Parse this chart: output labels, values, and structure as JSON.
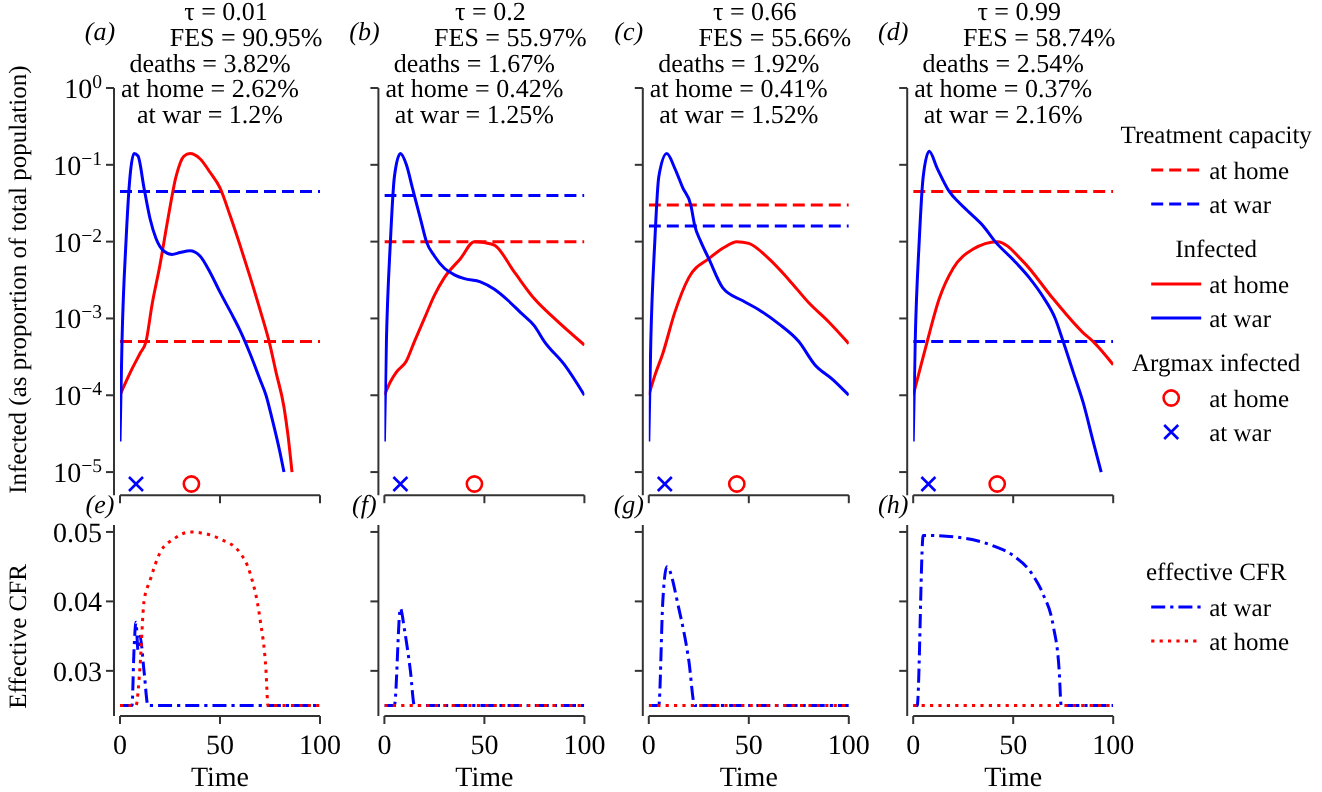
{
  "chart_data": [
    {
      "type": "line",
      "title": "τ = 0.01",
      "subtitle": "FES = 90.95%",
      "ylabel": "Infected (as proportion of total population)",
      "annotations": [
        "(a)",
        "deaths = 3.82%",
        "at home = 2.62%",
        "at war = 1.2%"
      ],
      "log": "y",
      "xlim": [
        0,
        100
      ],
      "xticks": [
        0,
        50,
        100
      ],
      "ylim": [
        5e-06,
        1
      ],
      "yticks": [
        {
          "value": 1,
          "label": "10$^{0}$"
        },
        {
          "value": 0.1,
          "label": "10$^{−1}$"
        },
        {
          "value": 0.01,
          "label": "10$^{−2}$"
        },
        {
          "value": 0.001,
          "label": "10$^{−3}$"
        },
        {
          "value": 0.0001,
          "label": "10$^{−4}$"
        },
        {
          "value": 1e-05,
          "label": "10$^{−5}$"
        }
      ],
      "tick_labels": "y",
      "legend": false,
      "series": [
        {
          "color": "#ff0000",
          "line_style": "dashed",
          "x": [
            0,
            100
          ],
          "values": [
            0.0005,
            0.0005
          ]
        },
        {
          "color": "#0000ff",
          "line_style": "dashed",
          "x": [
            0,
            100
          ],
          "values": [
            0.045,
            0.045
          ]
        },
        {
          "color": "#ff0000",
          "x": [
            0,
            3,
            6,
            10,
            13,
            16,
            20,
            24,
            28,
            32,
            35,
            40,
            45,
            50,
            55,
            60,
            65,
            70,
            75,
            78,
            82,
            84,
            86
          ],
          "values": [
            0.0001,
            0.00015,
            0.00022,
            0.00035,
            0.0005,
            0.0015,
            0.005,
            0.02,
            0.07,
            0.13,
            0.14,
            0.12,
            0.08,
            0.05,
            0.022,
            0.009,
            0.0035,
            0.0013,
            0.00045,
            0.0002,
            7e-05,
            3e-05,
            1e-05
          ]
        },
        {
          "color": "#0000ff",
          "x": [
            0,
            1,
            3,
            5,
            7,
            9,
            12,
            15,
            18,
            22,
            26,
            30,
            35,
            40,
            45,
            50,
            57,
            60,
            65,
            70,
            73,
            76,
            80,
            82
          ],
          "values": [
            2.5e-05,
            0.0005,
            0.01,
            0.07,
            0.14,
            0.13,
            0.05,
            0.02,
            0.011,
            0.0075,
            0.0068,
            0.0072,
            0.0076,
            0.0065,
            0.004,
            0.0022,
            0.001,
            0.0007,
            0.00035,
            0.00016,
            0.0001,
            5e-05,
            1.8e-05,
            1e-05
          ]
        },
        {
          "type": "scatter",
          "marker": "circle",
          "color": "#ff0000",
          "x": [
            35.7
          ],
          "values": [
            7e-06
          ]
        },
        {
          "type": "scatter",
          "marker": "cross",
          "color": "#0000ff",
          "x": [
            8
          ],
          "values": [
            7e-06
          ]
        }
      ]
    },
    {
      "type": "line",
      "title": "τ = 0.2",
      "subtitle": "FES = 55.97%",
      "annotations": [
        "(b)",
        "deaths = 1.67%",
        "at home = 0.42%",
        "at war = 1.25%"
      ],
      "log": "y",
      "xlim": [
        0,
        100
      ],
      "xticks": [
        0,
        50,
        100
      ],
      "ylim": [
        5e-06,
        1
      ],
      "yticks": [
        {
          "value": 1,
          "label": null
        },
        {
          "value": 0.1,
          "label": null
        },
        {
          "value": 0.01,
          "label": null
        },
        {
          "value": 0.001,
          "label": null
        },
        {
          "value": 0.0001,
          "label": null
        },
        {
          "value": 1e-05,
          "label": null
        }
      ],
      "tick_labels": false,
      "legend": false,
      "series": [
        {
          "color": "#ff0000",
          "line_style": "dashed",
          "x": [
            0,
            100
          ],
          "values": [
            0.01,
            0.01
          ]
        },
        {
          "color": "#0000ff",
          "line_style": "dashed",
          "x": [
            0,
            100
          ],
          "values": [
            0.04,
            0.04
          ]
        },
        {
          "color": "#ff0000",
          "x": [
            0,
            3,
            6,
            11,
            15,
            20,
            25,
            30,
            38,
            45,
            50,
            55,
            65,
            75,
            85,
            100
          ],
          "values": [
            0.0001,
            0.00015,
            0.0002,
            0.00028,
            0.0005,
            0.001,
            0.002,
            0.0034,
            0.006,
            0.01,
            0.0097,
            0.009,
            0.004,
            0.0018,
            0.001,
            0.00045
          ]
        },
        {
          "color": "#0000ff",
          "x": [
            0,
            1,
            3,
            5,
            8,
            11,
            14,
            18,
            21,
            25,
            30,
            35,
            40,
            48,
            55,
            62,
            68,
            75,
            80,
            90,
            100
          ],
          "values": [
            2.5e-05,
            0.0005,
            0.01,
            0.07,
            0.14,
            0.1,
            0.05,
            0.02,
            0.01,
            0.0065,
            0.0045,
            0.0037,
            0.0033,
            0.003,
            0.0024,
            0.0017,
            0.0012,
            0.0008,
            0.0005,
            0.00025,
            0.0001
          ]
        },
        {
          "type": "scatter",
          "marker": "circle",
          "color": "#ff0000",
          "x": [
            45
          ],
          "values": [
            7e-06
          ]
        },
        {
          "type": "scatter",
          "marker": "cross",
          "color": "#0000ff",
          "x": [
            8
          ],
          "values": [
            7e-06
          ]
        }
      ]
    },
    {
      "type": "line",
      "title": "τ = 0.66",
      "subtitle": "FES = 55.66%",
      "annotations": [
        "(c)",
        "deaths = 1.92%",
        "at home = 0.41%",
        "at war = 1.52%"
      ],
      "log": "y",
      "xlim": [
        0,
        100
      ],
      "xticks": [
        0,
        50,
        100
      ],
      "ylim": [
        5e-06,
        1
      ],
      "yticks": [
        {
          "value": 1,
          "label": null
        },
        {
          "value": 0.1,
          "label": null
        },
        {
          "value": 0.01,
          "label": null
        },
        {
          "value": 0.001,
          "label": null
        },
        {
          "value": 0.0001,
          "label": null
        },
        {
          "value": 1e-05,
          "label": null
        }
      ],
      "tick_labels": false,
      "legend": false,
      "series": [
        {
          "color": "#ff0000",
          "line_style": "dashed",
          "x": [
            0,
            100
          ],
          "values": [
            0.03,
            0.03
          ]
        },
        {
          "color": "#0000ff",
          "line_style": "dashed",
          "x": [
            0,
            100
          ],
          "values": [
            0.016,
            0.016
          ]
        },
        {
          "color": "#ff0000",
          "x": [
            0,
            3,
            7,
            13,
            20,
            30,
            38,
            44,
            50,
            60,
            70,
            80,
            90,
            100
          ],
          "values": [
            0.0001,
            0.00018,
            0.00035,
            0.0012,
            0.0034,
            0.006,
            0.0085,
            0.01,
            0.0095,
            0.006,
            0.0032,
            0.0016,
            0.0009,
            0.00047
          ]
        },
        {
          "color": "#0000ff",
          "x": [
            0,
            1,
            3,
            5,
            9,
            13,
            17,
            21,
            23,
            26,
            30,
            37,
            47,
            55,
            65,
            75,
            83,
            92,
            100
          ],
          "values": [
            2.5e-05,
            0.0005,
            0.01,
            0.07,
            0.14,
            0.09,
            0.05,
            0.03,
            0.016,
            0.01,
            0.006,
            0.0025,
            0.0017,
            0.0013,
            0.00085,
            0.0005,
            0.00025,
            0.00016,
            0.0001
          ]
        },
        {
          "type": "scatter",
          "marker": "circle",
          "color": "#ff0000",
          "x": [
            44
          ],
          "values": [
            7e-06
          ]
        },
        {
          "type": "scatter",
          "marker": "cross",
          "color": "#0000ff",
          "x": [
            8
          ],
          "values": [
            7e-06
          ]
        }
      ]
    },
    {
      "type": "line",
      "title": "τ = 0.99",
      "subtitle": "FES = 58.74%",
      "annotations": [
        "(d)",
        "deaths = 2.54%",
        "at home = 0.37%",
        "at war = 2.16%",
        "Infected",
        "Argmax infected"
      ],
      "log": "y",
      "xlim": [
        0,
        100
      ],
      "xticks": [
        0,
        50,
        100
      ],
      "ylim": [
        5e-06,
        1
      ],
      "yticks": [
        {
          "value": 1,
          "label": null
        },
        {
          "value": 0.1,
          "label": null
        },
        {
          "value": 0.01,
          "label": null
        },
        {
          "value": 0.001,
          "label": null
        },
        {
          "value": 0.0001,
          "label": null
        },
        {
          "value": 1e-05,
          "label": null
        }
      ],
      "tick_labels": false,
      "legend": "right",
      "legend_title": "Treatment capacity",
      "series": [
        {
          "name": "at home",
          "color": "#ff0000",
          "line_style": "dashed",
          "x": [
            0,
            100
          ],
          "values": [
            0.045,
            0.045
          ]
        },
        {
          "name": "at war",
          "color": "#0000ff",
          "line_style": "dashed",
          "x": [
            0,
            100
          ],
          "values": [
            0.0005,
            0.0005
          ]
        },
        {
          "name": "at home",
          "color": "#ff0000",
          "x": [
            0,
            3,
            7,
            13,
            20,
            30,
            42,
            55,
            70,
            85,
            90,
            100
          ],
          "values": [
            0.0001,
            0.0002,
            0.0005,
            0.0018,
            0.0045,
            0.008,
            0.01,
            0.0055,
            0.0018,
            0.00065,
            0.0005,
            0.00025
          ]
        },
        {
          "name": "at war",
          "color": "#0000ff",
          "x": [
            0,
            1,
            3,
            5,
            8,
            12,
            18,
            23,
            28,
            35,
            41,
            50,
            58,
            65,
            71,
            75,
            80,
            85,
            90,
            94
          ],
          "values": [
            2.5e-05,
            0.0005,
            0.01,
            0.07,
            0.15,
            0.09,
            0.045,
            0.032,
            0.024,
            0.016,
            0.01,
            0.0058,
            0.0034,
            0.0019,
            0.001,
            0.0005,
            0.0002,
            8e-05,
            2.5e-05,
            1e-05
          ]
        },
        {
          "type": "scatter",
          "name": "at home",
          "marker": "circle",
          "color": "#ff0000",
          "x": [
            42
          ],
          "values": [
            7e-06
          ]
        },
        {
          "type": "scatter",
          "name": "at war",
          "marker": "cross",
          "color": "#0000ff",
          "x": [
            7.6
          ],
          "values": [
            7e-06
          ]
        }
      ]
    },
    {
      "type": "line",
      "xlabel": "Time",
      "ylabel": "Effective CFR",
      "annotations": [
        "(e)"
      ],
      "xlim": [
        0,
        100
      ],
      "xticks": [
        0,
        50,
        100
      ],
      "ylim": [
        0.0235,
        0.051
      ],
      "yticks": [
        0.03,
        0.04,
        0.05
      ],
      "legend": false,
      "series": [
        {
          "color": "#0000ff",
          "line_style": "dashdot",
          "x": [
            0,
            6,
            7,
            8,
            9,
            10,
            12,
            14,
            100
          ],
          "values": [
            0.025,
            0.025,
            0.033,
            0.037,
            0.033,
            0.035,
            0.03,
            0.025,
            0.025
          ]
        },
        {
          "color": "#ff0000",
          "line_style": "dotted",
          "x": [
            0,
            8,
            10,
            12,
            15,
            20,
            27,
            35,
            40,
            50,
            60,
            65,
            70,
            73,
            74,
            100
          ],
          "values": [
            0.025,
            0.025,
            0.0306,
            0.04,
            0.043,
            0.047,
            0.049,
            0.05,
            0.0499,
            0.049,
            0.047,
            0.0441,
            0.0375,
            0.03,
            0.025,
            0.025
          ]
        }
      ]
    },
    {
      "type": "line",
      "xlabel": "Time",
      "annotations": [
        "(f)"
      ],
      "xlim": [
        0,
        100
      ],
      "xticks": [
        0,
        50,
        100
      ],
      "ylim": [
        0.0235,
        0.051
      ],
      "yticks": [
        0.03,
        0.04,
        0.05
      ],
      "tick_labels": "x",
      "legend": false,
      "series": [
        {
          "color": "#0000ff",
          "line_style": "dashdot",
          "x": [
            0,
            5,
            8,
            10,
            13,
            15,
            100
          ],
          "values": [
            0.025,
            0.025,
            0.039,
            0.036,
            0.03,
            0.025,
            0.025
          ]
        },
        {
          "color": "#ff0000",
          "line_style": "dotted",
          "x": [
            0,
            100
          ],
          "values": [
            0.025,
            0.025
          ]
        }
      ]
    },
    {
      "type": "line",
      "xlabel": "Time",
      "annotations": [
        "(g)"
      ],
      "xlim": [
        0,
        100
      ],
      "xticks": [
        0,
        50,
        100
      ],
      "ylim": [
        0.0235,
        0.051
      ],
      "yticks": [
        0.03,
        0.04,
        0.05
      ],
      "tick_labels": "x",
      "legend": false,
      "series": [
        {
          "color": "#0000ff",
          "line_style": "dashdot",
          "x": [
            0,
            5,
            7,
            9,
            15,
            20,
            23,
            100
          ],
          "values": [
            0.025,
            0.025,
            0.04,
            0.045,
            0.039,
            0.0315,
            0.025,
            0.025
          ]
        },
        {
          "color": "#ff0000",
          "line_style": "dotted",
          "x": [
            0,
            100
          ],
          "values": [
            0.025,
            0.025
          ]
        }
      ]
    },
    {
      "type": "line",
      "xlabel": "Time",
      "annotations": [
        "(h)"
      ],
      "xlim": [
        0,
        100
      ],
      "xticks": [
        0,
        50,
        100
      ],
      "ylim": [
        0.0235,
        0.051
      ],
      "yticks": [
        0.03,
        0.04,
        0.05
      ],
      "tick_labels": "x",
      "legend": "right",
      "legend_title": "effective CFR",
      "series": [
        {
          "name": "at war",
          "color": "#0000ff",
          "line_style": "dashdot",
          "x": [
            0,
            2,
            5,
            20,
            40,
            50,
            60,
            65,
            70,
            73,
            74,
            100
          ],
          "values": [
            0.025,
            0.025,
            0.0495,
            0.0493,
            0.048,
            0.0466,
            0.0437,
            0.041,
            0.0365,
            0.03,
            0.025,
            0.025
          ]
        },
        {
          "name": "at home",
          "color": "#ff0000",
          "line_style": "dotted",
          "x": [
            0,
            100
          ],
          "values": [
            0.025,
            0.025
          ]
        }
      ]
    }
  ]
}
